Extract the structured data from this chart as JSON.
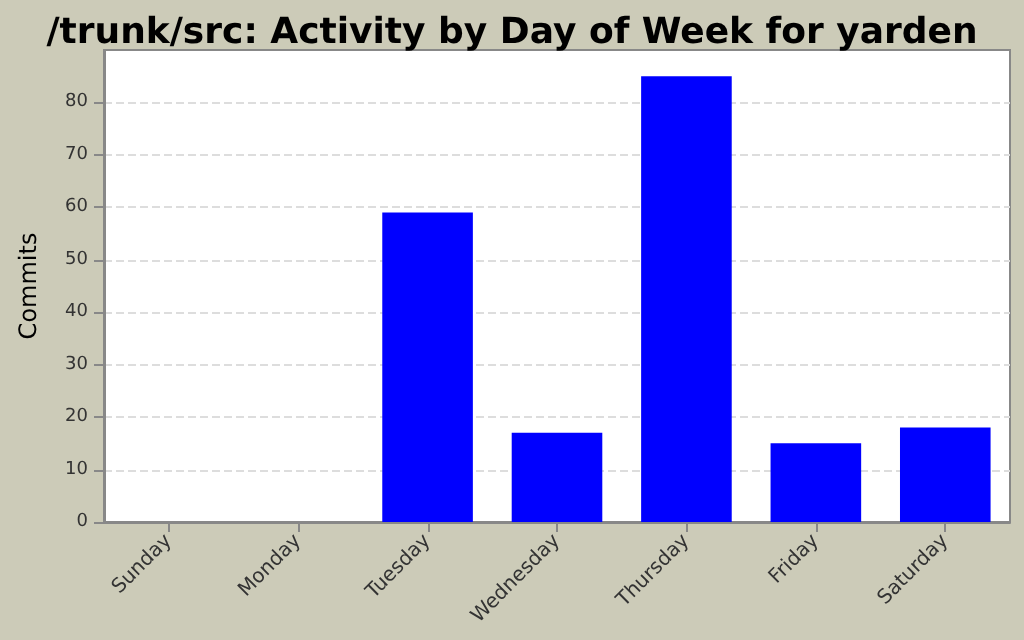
{
  "chart_data": {
    "type": "bar",
    "title": "/trunk/src: Activity by Day of Week for yarden",
    "ylabel": "Commits",
    "categories": [
      "Sunday",
      "Monday",
      "Tuesday",
      "Wednesday",
      "Thursday",
      "Friday",
      "Saturday"
    ],
    "values": [
      0,
      0,
      59,
      17,
      85,
      15,
      18
    ],
    "color": "#0000ff",
    "ylim": [
      0,
      90
    ],
    "yticks": [
      0,
      10,
      20,
      30,
      40,
      50,
      60,
      70,
      80
    ],
    "grid": "y"
  }
}
